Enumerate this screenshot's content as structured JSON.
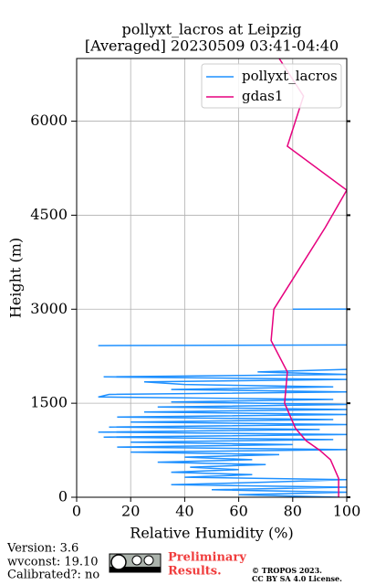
{
  "chart_data": {
    "type": "line",
    "title": [
      "pollyxt_lacros at Leipzig",
      "[Averaged] 20230509 03:41-04:40"
    ],
    "xlabel": "Relative Humidity (%)",
    "ylabel": "Height (m)",
    "xlim": [
      0,
      100
    ],
    "ylim": [
      0,
      7000
    ],
    "xticks": [
      0,
      20,
      40,
      60,
      80,
      100
    ],
    "yticks": [
      0,
      1500,
      3000,
      4500,
      6000
    ],
    "grid": true,
    "legend": "upper right",
    "series": [
      {
        "name": "pollyxt_lacros",
        "color": "#1e90ff",
        "x": [
          97,
          60,
          100,
          50,
          100,
          35,
          70,
          100,
          40,
          65,
          35,
          60,
          42,
          70,
          30,
          65,
          40,
          75,
          20,
          100,
          15,
          80,
          20,
          95,
          10,
          100,
          8,
          90,
          12,
          100,
          20,
          95,
          15,
          100,
          25,
          100,
          30,
          100,
          35,
          95,
          8,
          12,
          100,
          35,
          95,
          40,
          25,
          100,
          10,
          100,
          67,
          100,
          null,
          8,
          100,
          null,
          80,
          100
        ],
        "y": [
          0,
          40,
          80,
          120,
          160,
          200,
          240,
          280,
          320,
          360,
          400,
          440,
          480,
          520,
          560,
          600,
          640,
          680,
          720,
          760,
          800,
          840,
          880,
          920,
          960,
          1000,
          1040,
          1080,
          1120,
          1160,
          1200,
          1240,
          1280,
          1320,
          1360,
          1400,
          1440,
          1480,
          1520,
          1560,
          1600,
          1640,
          1680,
          1720,
          1760,
          1800,
          1840,
          1880,
          1920,
          1960,
          2000,
          2040,
          null,
          2420,
          2430,
          null,
          3000,
          3002
        ]
      },
      {
        "name": "gdas1",
        "color": "#e6007e",
        "x": [
          97,
          97,
          94,
          90,
          85,
          81,
          77,
          78,
          72,
          73,
          92,
          100,
          78,
          84,
          75
        ],
        "y": [
          0,
          300,
          600,
          750,
          900,
          1100,
          1500,
          2000,
          2500,
          3000,
          4300,
          4900,
          5600,
          6400,
          7000
        ]
      }
    ]
  },
  "footer": {
    "version": "Version: 3.6",
    "wvconst": "wvconst:  19.10",
    "calibrated": "Calibrated?: no",
    "status": [
      "Preliminary",
      "Results."
    ],
    "copyright": [
      "© TROPOS 2023.",
      "CC BY SA 4.0 License."
    ]
  }
}
